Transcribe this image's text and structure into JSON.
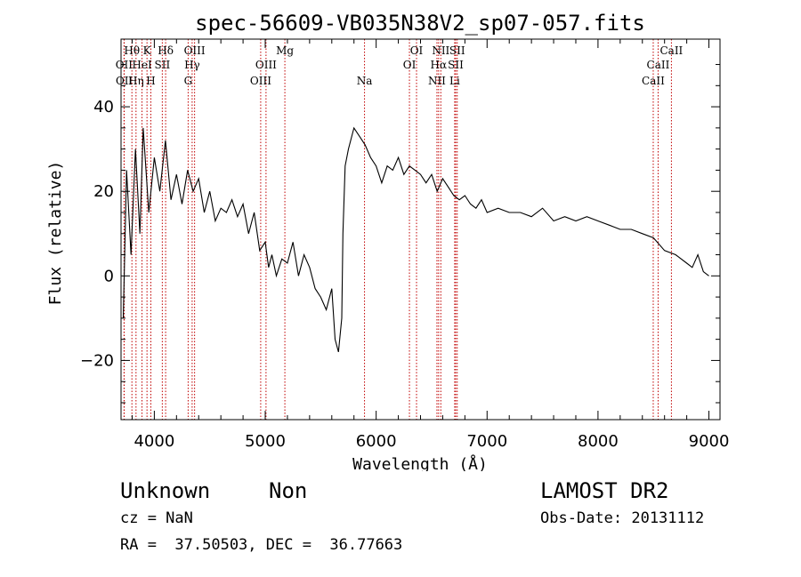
{
  "chart_data": {
    "type": "line",
    "title": "spec-56609-VB035N38V2_sp07-057.fits",
    "xlabel": "Wavelength (Å)",
    "ylabel": "Flux (relative)",
    "xlim": [
      3700,
      9100
    ],
    "ylim": [
      -34,
      56
    ],
    "xticks": [
      4000,
      5000,
      6000,
      7000,
      8000,
      9000
    ],
    "yticks": [
      -20,
      0,
      20,
      40
    ],
    "line_color": "#000000",
    "marker_color": "#c00000",
    "series": [
      {
        "x": [
          3720,
          3750,
          3790,
          3830,
          3870,
          3900,
          3950,
          4000,
          4050,
          4100,
          4150,
          4200,
          4250,
          4300,
          4350,
          4400,
          4450,
          4500,
          4550,
          4600,
          4650,
          4700,
          4750,
          4800,
          4850,
          4900,
          4950,
          5000,
          5030,
          5060,
          5100,
          5150,
          5200,
          5250,
          5300,
          5350,
          5400,
          5450,
          5500,
          5550,
          5600,
          5630,
          5660,
          5690,
          5700,
          5720,
          5750,
          5800,
          5850,
          5900,
          5950,
          6000,
          6050,
          6100,
          6150,
          6200,
          6250,
          6300,
          6350,
          6400,
          6450,
          6500,
          6550,
          6600,
          6650,
          6700,
          6750,
          6800,
          6850,
          6900,
          6950,
          7000,
          7100,
          7200,
          7300,
          7400,
          7500,
          7600,
          7700,
          7800,
          7900,
          8000,
          8100,
          8200,
          8300,
          8400,
          8500,
          8600,
          8700,
          8800,
          8850,
          8900,
          8950,
          9000
        ],
        "y": [
          -10,
          25,
          5,
          30,
          10,
          35,
          15,
          28,
          20,
          32,
          18,
          24,
          17,
          25,
          20,
          23,
          15,
          20,
          13,
          16,
          15,
          18,
          14,
          17,
          10,
          15,
          6,
          8,
          2,
          5,
          0,
          4,
          3,
          8,
          0,
          5,
          2,
          -3,
          -5,
          -8,
          -3,
          -15,
          -18,
          -10,
          10,
          26,
          30,
          35,
          33,
          31,
          28,
          26,
          22,
          26,
          25,
          28,
          24,
          26,
          25,
          24,
          22,
          24,
          20,
          23,
          21,
          19,
          18,
          19,
          17,
          16,
          18,
          15,
          16,
          15,
          15,
          14,
          16,
          13,
          14,
          13,
          14,
          13,
          12,
          11,
          11,
          10,
          9,
          6,
          5,
          3,
          2,
          5,
          1,
          0
        ]
      }
    ],
    "lines": [
      {
        "label": "Hθ",
        "x": 3798,
        "row": 0
      },
      {
        "label": "OII",
        "x": 3727,
        "row": 1
      },
      {
        "label": "OII",
        "x": 3729,
        "row": 2
      },
      {
        "label": "Hη",
        "x": 3835,
        "row": 2
      },
      {
        "label": "K",
        "x": 3934,
        "row": 0
      },
      {
        "label": "HeI",
        "x": 3889,
        "row": 1
      },
      {
        "label": "H",
        "x": 3969,
        "row": 2
      },
      {
        "label": "Hδ",
        "x": 4102,
        "row": 0
      },
      {
        "label": "SII",
        "x": 4072,
        "row": 1
      },
      {
        "label": "OIII",
        "x": 4363,
        "row": 0
      },
      {
        "label": "Hγ",
        "x": 4341,
        "row": 1
      },
      {
        "label": "G",
        "x": 4305,
        "row": 2
      },
      {
        "label": "OIII",
        "x": 5007,
        "row": 1
      },
      {
        "label": "OIII",
        "x": 4959,
        "row": 2
      },
      {
        "label": "Mg",
        "x": 5177,
        "row": 0
      },
      {
        "label": "Na",
        "x": 5895,
        "row": 2
      },
      {
        "label": "OI",
        "x": 6364,
        "row": 0
      },
      {
        "label": "OI",
        "x": 6300,
        "row": 1
      },
      {
        "label": "NII",
        "x": 6583,
        "row": 0
      },
      {
        "label": "Hα",
        "x": 6563,
        "row": 1
      },
      {
        "label": "NII",
        "x": 6548,
        "row": 2
      },
      {
        "label": "SII",
        "x": 6731,
        "row": 0
      },
      {
        "label": "SII",
        "x": 6717,
        "row": 1
      },
      {
        "label": "Li",
        "x": 6708,
        "row": 2
      },
      {
        "label": "CaII",
        "x": 8662,
        "row": 0
      },
      {
        "label": "CaII",
        "x": 8542,
        "row": 1
      },
      {
        "label": "CaII",
        "x": 8498,
        "row": 2
      }
    ]
  },
  "info": {
    "object_class": "Unknown",
    "object_subclass": "Non",
    "survey": "LAMOST DR2",
    "cz": "cz = NaN",
    "obs_date": "Obs-Date: 20131112",
    "coords": "RA =  37.50503, DEC =  36.77663"
  }
}
